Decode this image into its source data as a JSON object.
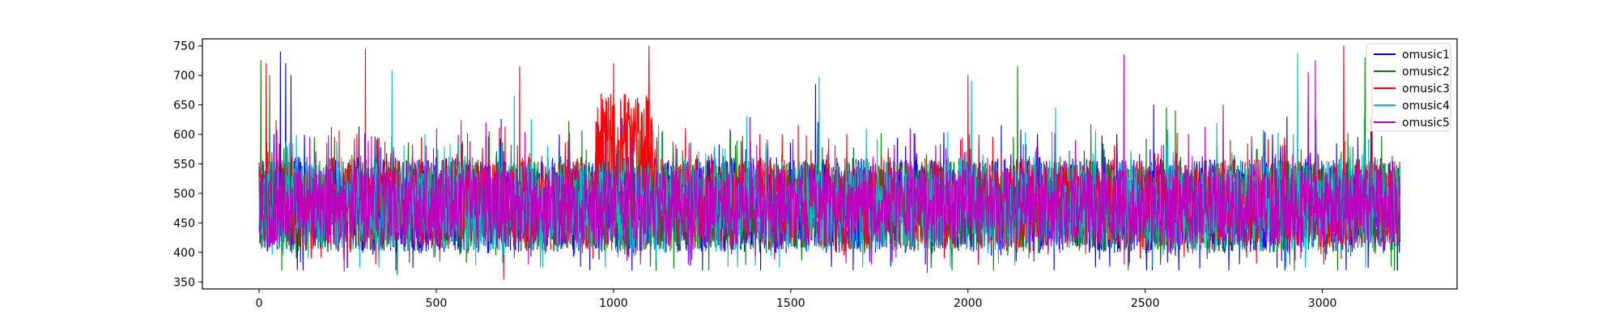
{
  "chart_data": {
    "type": "line",
    "title": "",
    "xlabel": "",
    "ylabel": "",
    "xlim": [
      -160,
      3380
    ],
    "ylim": [
      338,
      762
    ],
    "x_ticks": [
      0,
      500,
      1000,
      1500,
      2000,
      2500,
      3000
    ],
    "y_ticks": [
      350,
      400,
      450,
      500,
      550,
      600,
      650,
      700,
      750
    ],
    "x_tick_labels": [
      "0",
      "500",
      "1000",
      "1500",
      "2000",
      "2500",
      "3000"
    ],
    "y_tick_labels": [
      "350",
      "400",
      "450",
      "500",
      "550",
      "600",
      "650",
      "700",
      "750"
    ],
    "grid": false,
    "legend_position": "top-right",
    "n_points": 3220,
    "series": [
      {
        "name": "omusic1",
        "color": "#0000ff",
        "baseline": 480,
        "typical_range": [
          400,
          580
        ],
        "peaks": [
          {
            "x": 60,
            "y": 740
          },
          {
            "x": 75,
            "y": 720
          },
          {
            "x": 90,
            "y": 700
          },
          {
            "x": 1570,
            "y": 685
          },
          {
            "x": 2900,
            "y": 630
          },
          {
            "x": 2420,
            "y": 600
          }
        ],
        "troughs": [
          {
            "x": 1880,
            "y": 380
          },
          {
            "x": 2360,
            "y": 375
          }
        ]
      },
      {
        "name": "omusic2",
        "color": "#008000",
        "baseline": 478,
        "typical_range": [
          400,
          570
        ],
        "peaks": [
          {
            "x": 5,
            "y": 725
          },
          {
            "x": 30,
            "y": 700
          },
          {
            "x": 2140,
            "y": 715
          },
          {
            "x": 3120,
            "y": 730
          },
          {
            "x": 2720,
            "y": 640
          },
          {
            "x": 2560,
            "y": 645
          }
        ],
        "troughs": [
          {
            "x": 390,
            "y": 362
          },
          {
            "x": 1120,
            "y": 370
          }
        ]
      },
      {
        "name": "omusic3",
        "color": "#ff0000",
        "baseline": 482,
        "typical_range": [
          410,
          580
        ],
        "peaks": [
          {
            "x": 20,
            "y": 720
          },
          {
            "x": 300,
            "y": 745
          },
          {
            "x": 735,
            "y": 715
          },
          {
            "x": 1000,
            "y": 720
          },
          {
            "x": 1100,
            "y": 750
          },
          {
            "x": 2000,
            "y": 700
          },
          {
            "x": 3060,
            "y": 750
          },
          {
            "x": 3140,
            "y": 700
          }
        ],
        "troughs": [
          {
            "x": 690,
            "y": 355
          },
          {
            "x": 250,
            "y": 375
          }
        ],
        "dense_regions": [
          {
            "x_start": 950,
            "x_end": 1110,
            "level": 620
          }
        ]
      },
      {
        "name": "omusic4",
        "color": "#00bfbf",
        "baseline": 480,
        "typical_range": [
          405,
          575
        ],
        "peaks": [
          {
            "x": 375,
            "y": 708
          },
          {
            "x": 720,
            "y": 665
          },
          {
            "x": 1580,
            "y": 697
          },
          {
            "x": 2010,
            "y": 690
          },
          {
            "x": 2930,
            "y": 737
          },
          {
            "x": 2960,
            "y": 700
          }
        ],
        "troughs": [
          {
            "x": 1950,
            "y": 375
          }
        ]
      },
      {
        "name": "omusic5",
        "color": "#bf00bf",
        "baseline": 478,
        "typical_range": [
          410,
          560
        ],
        "peaks": [
          {
            "x": 2440,
            "y": 735
          },
          {
            "x": 2980,
            "y": 725
          },
          {
            "x": 2960,
            "y": 705
          },
          {
            "x": 2720,
            "y": 650
          },
          {
            "x": 640,
            "y": 620
          }
        ],
        "troughs": [
          {
            "x": 1885,
            "y": 366
          },
          {
            "x": 240,
            "y": 368
          }
        ]
      }
    ]
  }
}
